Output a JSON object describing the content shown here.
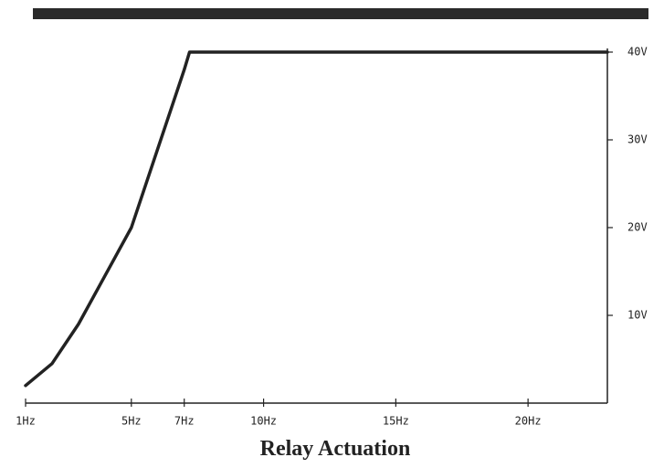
{
  "chart_data": {
    "type": "line",
    "title": "Relay Actuation",
    "x": [
      1,
      2,
      3,
      4,
      5,
      6,
      7,
      7.2,
      23
    ],
    "values": [
      2,
      4.5,
      9,
      14.5,
      20,
      29,
      38,
      40,
      40
    ],
    "color": "#222222",
    "xlim": [
      1,
      23
    ],
    "ylim": [
      0,
      40
    ],
    "xticks": [
      {
        "value": 1,
        "label": "1Hz"
      },
      {
        "value": 5,
        "label": "5Hz"
      },
      {
        "value": 7,
        "label": "7Hz"
      },
      {
        "value": 10,
        "label": "10Hz"
      },
      {
        "value": 15,
        "label": "15Hz"
      },
      {
        "value": 20,
        "label": "20Hz"
      }
    ],
    "yticks": [
      {
        "value": 10,
        "label": "10V"
      },
      {
        "value": 20,
        "label": "20V"
      },
      {
        "value": 30,
        "label": "30V"
      },
      {
        "value": 40,
        "label": "40V"
      }
    ],
    "y_axis_side": "right"
  }
}
